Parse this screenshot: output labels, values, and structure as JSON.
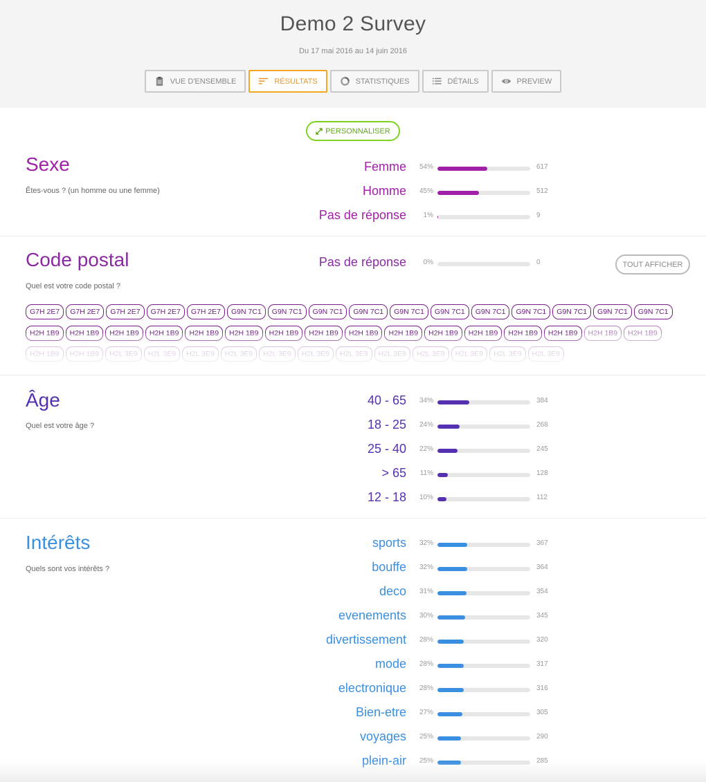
{
  "header": {
    "title": "Demo 2 Survey",
    "dates": "Du 17 mai 2016 au 14 juin 2016",
    "tabs": [
      {
        "label": "VUE D'ENSEMBLE",
        "icon": "clipboard-icon",
        "active": false
      },
      {
        "label": "RÉSULTATS",
        "icon": "sort-lines-icon",
        "active": true
      },
      {
        "label": "STATISTIQUES",
        "icon": "ring-chart-icon",
        "active": false
      },
      {
        "label": "DÉTAILS",
        "icon": "list-icon",
        "active": false
      },
      {
        "label": "PREVIEW",
        "icon": "eye-icon",
        "active": false
      }
    ]
  },
  "customize_label": "PERSONNALISER",
  "colors": {
    "sexe": "#a020a8",
    "code": "#8a2aa0",
    "age": "#5530b0",
    "interets": "#3a8fe0"
  },
  "sexe": {
    "title": "Sexe",
    "subtitle": "Êtes-vous ? (un homme ou une femme)",
    "rows": [
      {
        "label": "Femme",
        "pct": "54%",
        "value": 0.54,
        "count": "617"
      },
      {
        "label": "Homme",
        "pct": "45%",
        "value": 0.45,
        "count": "512"
      },
      {
        "label": "Pas de réponse",
        "pct": "1%",
        "value": 0.01,
        "count": "9"
      }
    ]
  },
  "code_postal": {
    "title": "Code postal",
    "subtitle": "Quel est votre code postal ?",
    "show_all": "TOUT AFFICHER",
    "rows": [
      {
        "label": "Pas de réponse",
        "pct": "0%",
        "value": 0,
        "count": "0"
      }
    ],
    "chips": [
      "G7H 2E7",
      "G7H 2E7",
      "G7H 2E7",
      "G7H 2E7",
      "G7H 2E7",
      "G9N 7C1",
      "G9N 7C1",
      "G9N 7C1",
      "G9N 7C1",
      "G9N 7C1",
      "G9N 7C1",
      "G9N 7C1",
      "G9N 7C1",
      "G9N 7C1",
      "G9N 7C1",
      "G9N 7C1",
      "H2H 1B9",
      "H2H 1B9",
      "H2H 1B9",
      "H2H 1B9",
      "H2H 1B9",
      "H2H 1B9",
      "H2H 1B9",
      "H2H 1B9",
      "H2H 1B9",
      "H2H 1B9",
      "H2H 1B9",
      "H2H 1B9",
      "H2H 1B9",
      "H2H 1B9",
      "H2H 1B9",
      "H2H 1B9",
      "H2H 1B9",
      "H2H 1B9",
      "H2L 3E9",
      "H2L 3E9",
      "H2L 3E9",
      "H2L 3E9",
      "H2L 3E9",
      "H2L 3E9",
      "H2L 3E9",
      "H2L 3E9",
      "H2L 3E9",
      "H2L 3E9",
      "H2L 3E9",
      "H2L 3E9"
    ]
  },
  "age": {
    "title": "Âge",
    "subtitle": "Quel est votre âge ?",
    "rows": [
      {
        "label": "40 - 65",
        "pct": "34%",
        "value": 0.34,
        "count": "384"
      },
      {
        "label": "18 - 25",
        "pct": "24%",
        "value": 0.24,
        "count": "268"
      },
      {
        "label": "25 - 40",
        "pct": "22%",
        "value": 0.22,
        "count": "245"
      },
      {
        "label": "> 65",
        "pct": "11%",
        "value": 0.11,
        "count": "128"
      },
      {
        "label": "12 - 18",
        "pct": "10%",
        "value": 0.1,
        "count": "112"
      }
    ]
  },
  "interets": {
    "title": "Intérêts",
    "subtitle": "Quels sont vos intérêts ?",
    "rows": [
      {
        "label": "sports",
        "pct": "32%",
        "value": 0.32,
        "count": "367"
      },
      {
        "label": "bouffe",
        "pct": "32%",
        "value": 0.32,
        "count": "364"
      },
      {
        "label": "deco",
        "pct": "31%",
        "value": 0.31,
        "count": "354"
      },
      {
        "label": "evenements",
        "pct": "30%",
        "value": 0.3,
        "count": "345"
      },
      {
        "label": "divertissement",
        "pct": "28%",
        "value": 0.28,
        "count": "320"
      },
      {
        "label": "mode",
        "pct": "28%",
        "value": 0.28,
        "count": "317"
      },
      {
        "label": "electronique",
        "pct": "28%",
        "value": 0.28,
        "count": "316"
      },
      {
        "label": "Bien-etre",
        "pct": "27%",
        "value": 0.27,
        "count": "305"
      },
      {
        "label": "voyages",
        "pct": "25%",
        "value": 0.25,
        "count": "290"
      },
      {
        "label": "plein-air",
        "pct": "25%",
        "value": 0.25,
        "count": "285"
      }
    ]
  }
}
